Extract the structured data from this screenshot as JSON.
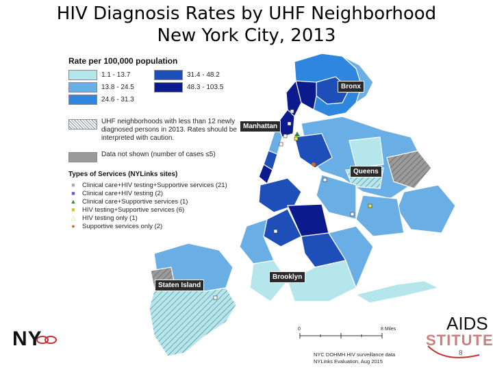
{
  "title": {
    "line1": "HIV Diagnosis Rates by UHF Neighborhood",
    "line2": "New York City, 2013"
  },
  "legend": {
    "heading": "Rate per 100,000 population",
    "classes": [
      {
        "label": "1.1 - 13.7",
        "color": "#b5e6ec"
      },
      {
        "label": "13.8 - 24.5",
        "color": "#6aaee6"
      },
      {
        "label": "24.6 - 31.3",
        "color": "#2e86de"
      },
      {
        "label": "31.4 - 48.2",
        "color": "#1e4fb8"
      },
      {
        "label": "48.3 - 103.5",
        "color": "#0b1a8c"
      }
    ],
    "caution_note": "UHF neighborhoods with less than 12 newly diagnosed persons in 2013.  Rates should be interpreted with caution.",
    "not_shown_note": "Data not shown (number of cases ≤5)",
    "services_heading": "Types of Services (NYLinks sites)",
    "services": [
      {
        "label": "Clinical care+HIV testing+Supportive services (21)",
        "marker": "square",
        "color": "#ffffff"
      },
      {
        "label": "Clinical care+HIV testing (2)",
        "marker": "square",
        "color": "#6a5acd"
      },
      {
        "label": "Clinical care+Supportive services (1)",
        "marker": "triangle",
        "color": "#2e8b2e"
      },
      {
        "label": "HIV testing+Supportive services (6)",
        "marker": "square",
        "color": "#e8e84a"
      },
      {
        "label": "HIV testing only (1)",
        "marker": "triangle",
        "color": "#f0f0a0"
      },
      {
        "label": "Supportive services only (2)",
        "marker": "circle",
        "color": "#d2691e"
      }
    ]
  },
  "boroughs": {
    "bronx": "Bronx",
    "manhattan": "Manhattan",
    "queens": "Queens",
    "brooklyn": "Brooklyn",
    "staten_island": "Staten Island"
  },
  "scale_bar": {
    "start": "0",
    "end": "8 Miles"
  },
  "credit": {
    "line1": "NYC DOHMH HIV surveillance data",
    "line2": "NYLinks Evaluation, Aug 2015"
  },
  "logos": {
    "nylinks": "NY",
    "aids": "AIDS",
    "institute": "STITUTE"
  },
  "page_number": "8"
}
